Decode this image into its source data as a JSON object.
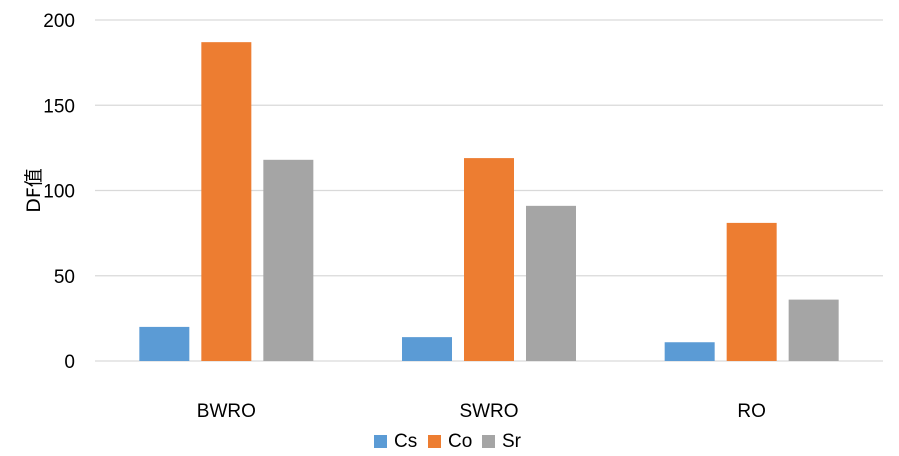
{
  "chart_data": {
    "type": "bar",
    "title": "",
    "xlabel": "",
    "ylabel": "DF值",
    "ylim": [
      0,
      200
    ],
    "yticks": [
      0,
      50,
      100,
      150,
      200
    ],
    "grid": true,
    "legend_position": "bottom",
    "categories": [
      "BWRO",
      "SWRO",
      "RO"
    ],
    "series": [
      {
        "name": "Cs",
        "color": "#5B9BD5",
        "values": [
          20,
          14,
          11
        ]
      },
      {
        "name": "Co",
        "color": "#ED7D31",
        "values": [
          187,
          119,
          81
        ]
      },
      {
        "name": "Sr",
        "color": "#A5A5A5",
        "values": [
          118,
          91,
          36
        ]
      }
    ]
  }
}
